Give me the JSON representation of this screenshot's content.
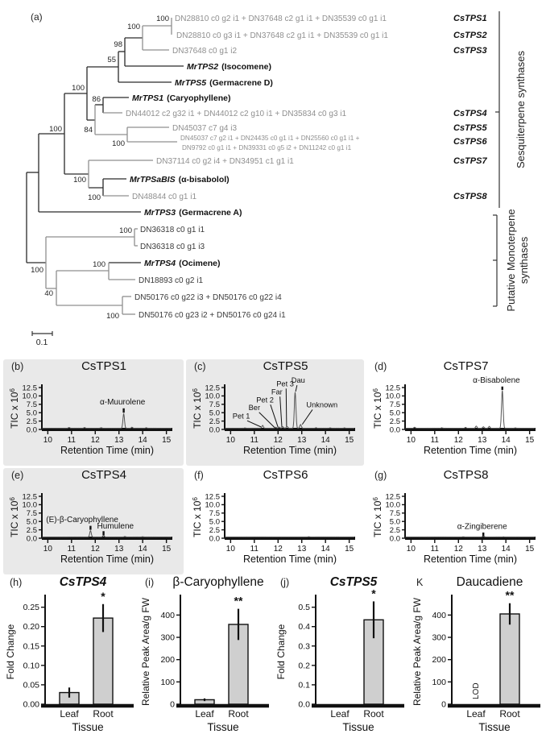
{
  "figure": {
    "panel_a_label": "(a)",
    "scale_bar_label": "0.1",
    "group_labels": {
      "sesquiterpene": "Sesquiterpene synthases",
      "monoterpene_line1": "Putative Monoterpene",
      "monoterpene_line2": "synthases"
    }
  },
  "tree": {
    "leaves": [
      {
        "label": "DN28810 c0 g2 i1 + DN37648 c2 g1 i1 + DN35539 c0 g1 i1",
        "tag": "CsTPS1"
      },
      {
        "label": "DN28810 c0 g3 i1 + DN37648 c2 g1 i1 + DN35539 c0 g1 i1",
        "tag": "CsTPS2"
      },
      {
        "label": "DN37648 c0 g1 i2",
        "tag": "CsTPS3"
      },
      {
        "name": "MrTPS2",
        "product": "(Isocomene)"
      },
      {
        "name": "MrTPS5",
        "product": "(Germacrene D)"
      },
      {
        "name": "MrTPS1",
        "product": "(Caryophyllene)"
      },
      {
        "label": "DN44012 c2 g32 i1 + DN44012 c2 g10 i1 + DN35834 c0 g3 i1",
        "tag": "CsTPS4"
      },
      {
        "label": "DN45037 c7 g4 i3",
        "tag": "CsTPS5"
      },
      {
        "label_line1": "DN45037 c7 g2 i1 + DN24435 c0 g1 i1 + DN25560 c0 g1 i1 +",
        "label_line2": "DN9792 c0 g1 i1 + DN39331 c0 g5 i2 + DN11242 c0 g1 i1",
        "tag": "CsTPS6"
      },
      {
        "label": "DN37114 c0 g2 i4 + DN34951 c1 g1 i1",
        "tag": "CsTPS7"
      },
      {
        "name": "MrTPSaBIS",
        "product": "(α-bisabolol)"
      },
      {
        "label": "DN48844 c0 g1 i1",
        "tag": "CsTPS8"
      },
      {
        "name": "MrTPS3",
        "product": "(Germacrene A)"
      },
      {
        "label": "DN36318 c0 g1 i1"
      },
      {
        "label": "DN36318 c0 g1 i3"
      },
      {
        "name": "MrTPS4",
        "product": "(Ocimene)"
      },
      {
        "label": "DN18893 c0 g2 i1"
      },
      {
        "label": "DN50176 c0 g22 i3 + DN50176 c0 g22 i4"
      },
      {
        "label": "DN50176 c0 g23 i2 + DN50176 c0 g24 i1"
      }
    ],
    "bootstraps": [
      "100",
      "100",
      "98",
      "55",
      "100",
      "86",
      "84",
      "100",
      "100",
      "100",
      "100",
      "100",
      "100",
      "100",
      "40",
      "100"
    ]
  },
  "chart_data": [
    {
      "type": "line",
      "kind": "chromatogram",
      "panel": "(b)",
      "title": "CsTPS1",
      "xlabel": "Retention Time (min)",
      "ylabel": "TIC x 10",
      "ylabel_sup": "6",
      "xlim": [
        9.75,
        15.25
      ],
      "ylim": [
        0,
        12.5
      ],
      "x_ticks": [
        10,
        11,
        12,
        13,
        14,
        15
      ],
      "y_ticks": [
        "0.0",
        "2.5",
        "5.0",
        "7.5",
        "10.0",
        "12.5"
      ],
      "peaks": [
        {
          "rt": 13.2,
          "height": 4.3,
          "label": "α-Muurolene",
          "label_x": 13.15,
          "label_y": 7.4,
          "tick": [
            13.2,
            6.3,
            5.0
          ]
        }
      ],
      "noise": [
        [
          10.9,
          0.25
        ],
        [
          11.55,
          0.2
        ],
        [
          12.25,
          0.15
        ],
        [
          13.55,
          0.3
        ],
        [
          14.15,
          0.15
        ]
      ]
    },
    {
      "type": "line",
      "kind": "chromatogram",
      "panel": "(c)",
      "title": "CsTPS5",
      "xlabel": "Retention Time (min)",
      "ylabel": "TIC x 10",
      "ylabel_sup": "6",
      "xlim": [
        9.75,
        15.25
      ],
      "ylim": [
        0,
        12.5
      ],
      "x_ticks": [
        10,
        11,
        12,
        13,
        14,
        15
      ],
      "y_ticks": [
        "0.0",
        "2.5",
        "5.0",
        "7.5",
        "10.0",
        "12.5"
      ],
      "small_labels": true,
      "peaks": [
        {
          "rt": 11.35,
          "height": 0.85,
          "label": "Pet 1",
          "label_x": 10.45,
          "label_y": 3.3,
          "ptr": [
            10.7,
            2.6,
            11.28,
            0.75
          ]
        },
        {
          "rt": 11.9,
          "height": 0.3,
          "label": "Ber",
          "label_x": 11.0,
          "label_y": 5.8,
          "ptr": [
            11.2,
            5.1,
            11.85,
            0.6
          ]
        },
        {
          "rt": 12.05,
          "height": 0.35,
          "label": "Pet 2",
          "label_x": 11.45,
          "label_y": 8.1,
          "ptr": [
            11.68,
            7.4,
            12.0,
            0.65
          ]
        },
        {
          "rt": 12.2,
          "height": 0.45,
          "label": "Far",
          "label_x": 11.95,
          "label_y": 10.5,
          "ptr": [
            12.08,
            9.8,
            12.16,
            0.75
          ]
        },
        {
          "rt": 12.38,
          "height": 0.55,
          "label": "Pet 3",
          "label_x": 12.3,
          "label_y": 12.9,
          "ptr": [
            12.34,
            12.2,
            12.36,
            0.9
          ]
        },
        {
          "rt": 12.72,
          "height": 10.8,
          "label": "Dau",
          "label_x": 12.85,
          "label_y": 13.9,
          "ptr": [
            12.8,
            13.2,
            12.74,
            11.3
          ]
        },
        {
          "rt": 12.95,
          "height": 1.1,
          "label": "Unknown",
          "label_x": 13.85,
          "label_y": 6.6,
          "ptr": [
            13.45,
            5.9,
            13.02,
            1.5
          ]
        }
      ],
      "noise": [
        [
          10.6,
          0.1
        ],
        [
          13.6,
          0.15
        ],
        [
          14.2,
          0.12
        ],
        [
          14.8,
          0.1
        ]
      ]
    },
    {
      "type": "line",
      "kind": "chromatogram",
      "panel": "(d)",
      "title": "CsTPS7",
      "xlabel": "Retention Time (min)",
      "ylabel": "TIC x 10",
      "ylabel_sup": "6",
      "xlim": [
        9.75,
        15.25
      ],
      "ylim": [
        0,
        12.5
      ],
      "x_ticks": [
        10,
        11,
        12,
        13,
        14,
        15
      ],
      "y_ticks": [
        "0.0",
        "2.5",
        "5.0",
        "7.5",
        "10.0",
        "12.5"
      ],
      "peaks": [
        {
          "rt": 13.85,
          "height": 11.3,
          "label": "α-Bisabolene",
          "label_x": 13.6,
          "label_y": 14.0,
          "tick": [
            13.85,
            12.8,
            11.8
          ]
        }
      ],
      "noise": [
        [
          10.15,
          0.3
        ],
        [
          11.3,
          0.15
        ],
        [
          12.3,
          0.25
        ],
        [
          12.75,
          0.65
        ],
        [
          13.05,
          0.45
        ],
        [
          13.3,
          0.55
        ],
        [
          14.4,
          0.12
        ]
      ]
    },
    {
      "type": "line",
      "kind": "chromatogram",
      "panel": "(e)",
      "title": "CsTPS4",
      "xlabel": "Retention Time (min)",
      "ylabel": "TIC x 10",
      "ylabel_sup": "6",
      "xlim": [
        9.75,
        15.25
      ],
      "ylim": [
        0,
        12.5
      ],
      "x_ticks": [
        10,
        11,
        12,
        13,
        14,
        15
      ],
      "y_ticks": [
        "0.0",
        "2.5",
        "5.0",
        "7.5",
        "10.0",
        "12.5"
      ],
      "peaks": [
        {
          "rt": 11.8,
          "height": 1.9,
          "label": "(E)-β-Caryophyllene",
          "label_x": 11.45,
          "label_y": 4.8,
          "tick": [
            11.8,
            3.7,
            2.5
          ]
        },
        {
          "rt": 12.35,
          "height": 0.5,
          "label": "Humulene",
          "label_x": 12.85,
          "label_y": 2.9,
          "tick": [
            12.35,
            2.1,
            0.9
          ]
        }
      ],
      "noise": [
        [
          13.25,
          0.15
        ],
        [
          14.0,
          0.1
        ]
      ]
    },
    {
      "type": "line",
      "kind": "chromatogram",
      "panel": "(f)",
      "title": "CsTPS6",
      "xlabel": "Retention Time (min)",
      "ylabel": "TIC x 10",
      "ylabel_sup": "6",
      "xlim": [
        9.75,
        15.25
      ],
      "ylim": [
        0,
        12.5
      ],
      "x_ticks": [
        10,
        11,
        12,
        13,
        14,
        15
      ],
      "y_ticks": [
        "0.0",
        "2.5",
        "5.0",
        "7.5",
        "10.0",
        "12.5"
      ],
      "peaks": [],
      "noise": [
        [
          13.3,
          0.08
        ]
      ]
    },
    {
      "type": "line",
      "kind": "chromatogram",
      "panel": "(g)",
      "title": "CsTPS8",
      "xlabel": "Retention Time (min)",
      "ylabel": "TIC x 10",
      "ylabel_sup": "6",
      "xlim": [
        9.75,
        15.25
      ],
      "ylim": [
        0,
        12.5
      ],
      "x_ticks": [
        10,
        11,
        12,
        13,
        14,
        15
      ],
      "y_ticks": [
        "0.0",
        "2.5",
        "5.0",
        "7.5",
        "10.0",
        "12.5"
      ],
      "peaks": [
        {
          "rt": 13.05,
          "height": 0.35,
          "label": "α-Zingiberene",
          "label_x": 13.0,
          "label_y": 2.8,
          "tick": [
            13.05,
            1.7,
            0.6
          ]
        }
      ],
      "noise": [
        [
          12.2,
          0.08
        ],
        [
          13.9,
          0.06
        ]
      ]
    },
    {
      "type": "bar",
      "panel": "(h)",
      "title": "CsTPS4",
      "title_italic": true,
      "xlabel": "Tissue",
      "ylabel": "Fold Change",
      "categories": [
        "Leaf",
        "Root"
      ],
      "values": [
        0.03,
        0.222
      ],
      "errors": [
        0.013,
        0.036
      ],
      "y_ticks": [
        "0.00",
        "0.05",
        "0.10",
        "0.15",
        "0.20",
        "0.25"
      ],
      "ylim": [
        0,
        0.27
      ],
      "sig": "*",
      "bar_color": "#cfcfcf"
    },
    {
      "type": "bar",
      "panel": "(i)",
      "title": "β-Caryophyllene",
      "title_italic": false,
      "xlabel": "Tissue",
      "ylabel": "Relative Peak Area/g FW",
      "categories": [
        "Leaf",
        "Root"
      ],
      "values": [
        20,
        358
      ],
      "errors": [
        6,
        70
      ],
      "y_ticks": [
        "0",
        "100",
        "200",
        "300",
        "400"
      ],
      "ylim": [
        0,
        470
      ],
      "sig": "**",
      "bar_color": "#cfcfcf"
    },
    {
      "type": "bar",
      "panel": "(j)",
      "title": "CsTPS5",
      "title_italic": true,
      "xlabel": "Tissue",
      "ylabel": "Fold Change",
      "categories": [
        "Leaf",
        "Root"
      ],
      "values": [
        0,
        0.435
      ],
      "errors": [
        0,
        0.095
      ],
      "y_ticks": [
        "0.0",
        "0.1",
        "0.2",
        "0.3",
        "0.4",
        "0.5"
      ],
      "ylim": [
        0,
        0.54
      ],
      "sig": "*",
      "bar_color": "#cfcfcf"
    },
    {
      "type": "bar",
      "panel": "K",
      "title": "Daucadiene",
      "title_italic": false,
      "xlabel": "Tissue",
      "ylabel": "Relative Peak Area/g FW",
      "categories": [
        "Leaf",
        "Root"
      ],
      "values": [
        0,
        405
      ],
      "errors": [
        0,
        48
      ],
      "y_ticks": [
        "0",
        "100",
        "200",
        "300",
        "400"
      ],
      "ylim": [
        0,
        470
      ],
      "sig": "**",
      "lod": "LOD",
      "bar_color": "#cfcfcf"
    }
  ]
}
